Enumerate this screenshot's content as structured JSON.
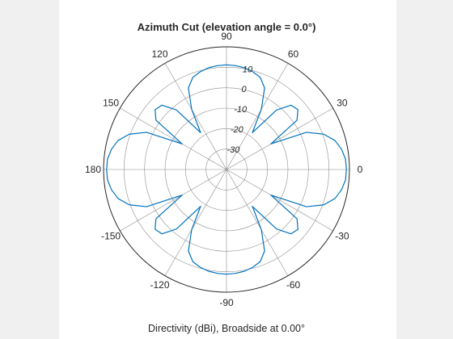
{
  "chart_data": {
    "type": "polar-line",
    "title": "Azimuth Cut (elevation angle = 0.0°)",
    "xlabel": "Directivity (dBi), Broadside at 0.00°",
    "angle_ticks": [
      "0",
      "30",
      "60",
      "90",
      "120",
      "150",
      "180",
      "-150",
      "-120",
      "-90",
      "-60",
      "-30"
    ],
    "angle_tick_degrees": [
      0,
      30,
      60,
      90,
      120,
      150,
      180,
      210,
      240,
      270,
      300,
      330
    ],
    "r_ticks": [
      -30,
      -20,
      -10,
      0,
      10
    ],
    "r_tick_labels": [
      "-30",
      "-20",
      "-10",
      "0",
      "10"
    ],
    "r_limits": [
      -40,
      20
    ],
    "grid": true,
    "series": [
      {
        "color": "#0072bd",
        "azimuth_deg": [
          0,
          5,
          10,
          15,
          20,
          25,
          30,
          35,
          40,
          45,
          50,
          55,
          60,
          65,
          70,
          75,
          80,
          85,
          90,
          95,
          100,
          105,
          110,
          115,
          120,
          125,
          130,
          135,
          140,
          145,
          150,
          155,
          160,
          165,
          170,
          175,
          180,
          185,
          190,
          195,
          200,
          205,
          210,
          215,
          220,
          225,
          230,
          235,
          240,
          245,
          250,
          255,
          260,
          265,
          270,
          275,
          280,
          285,
          290,
          295,
          300,
          305,
          310,
          315,
          320,
          325,
          330,
          335,
          340,
          345,
          350,
          355
        ],
        "directivity_dbi": [
          18.5,
          18.3,
          17.0,
          14.8,
          10.5,
          3.0,
          -15.0,
          2.0,
          5.5,
          4.5,
          -2.0,
          -18.0,
          -6.0,
          4.0,
          8.0,
          9.5,
          10.5,
          11.0,
          11.2,
          11.0,
          10.5,
          9.5,
          8.0,
          4.0,
          -6.0,
          -18.0,
          -2.0,
          4.5,
          5.5,
          2.0,
          -15.0,
          3.0,
          10.5,
          14.8,
          17.0,
          18.3,
          18.5,
          18.3,
          17.0,
          14.8,
          10.5,
          3.0,
          -15.0,
          2.0,
          5.5,
          4.5,
          -2.0,
          -18.0,
          -6.0,
          4.0,
          8.0,
          9.5,
          10.5,
          11.0,
          11.2,
          11.0,
          10.5,
          9.5,
          8.0,
          4.0,
          -6.0,
          -18.0,
          -2.0,
          4.5,
          5.5,
          2.0,
          -15.0,
          3.0,
          10.5,
          14.8,
          17.0,
          18.3
        ]
      }
    ]
  },
  "colors": {
    "figure_background": "#f0f0f0",
    "axes_background": "#ffffff",
    "grid": "#8c8c8c",
    "outer_ring": "#262626",
    "trace": "#0072bd"
  }
}
